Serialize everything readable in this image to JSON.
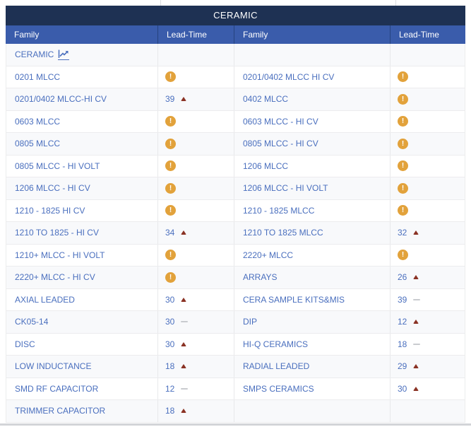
{
  "table": {
    "title": "CERAMIC",
    "columns": [
      "Family",
      "Lead-Time",
      "Family",
      "Lead-Time"
    ],
    "category_row": {
      "label": "CERAMIC",
      "icon": "trend-chart-icon"
    },
    "rows": [
      {
        "family_left": "0201 MLCC",
        "lead_left": {
          "type": "alert"
        },
        "family_right": "0201/0402 MLCC HI CV",
        "lead_right": {
          "type": "alert"
        }
      },
      {
        "family_left": "0201/0402 MLCC-HI CV",
        "lead_left": {
          "type": "value",
          "value": 39,
          "trend": "up"
        },
        "family_right": "0402 MLCC",
        "lead_right": {
          "type": "alert"
        }
      },
      {
        "family_left": "0603 MLCC",
        "lead_left": {
          "type": "alert"
        },
        "family_right": "0603 MLCC - HI CV",
        "lead_right": {
          "type": "alert"
        }
      },
      {
        "family_left": "0805 MLCC",
        "lead_left": {
          "type": "alert"
        },
        "family_right": "0805 MLCC - HI CV",
        "lead_right": {
          "type": "alert"
        }
      },
      {
        "family_left": "0805 MLCC - HI VOLT",
        "lead_left": {
          "type": "alert"
        },
        "family_right": "1206 MLCC",
        "lead_right": {
          "type": "alert"
        }
      },
      {
        "family_left": "1206 MLCC - HI CV",
        "lead_left": {
          "type": "alert"
        },
        "family_right": "1206 MLCC - HI VOLT",
        "lead_right": {
          "type": "alert"
        }
      },
      {
        "family_left": "1210 - 1825 HI CV",
        "lead_left": {
          "type": "alert"
        },
        "family_right": "1210 - 1825 MLCC",
        "lead_right": {
          "type": "alert"
        }
      },
      {
        "family_left": "1210 TO 1825 - HI CV",
        "lead_left": {
          "type": "value",
          "value": 34,
          "trend": "up"
        },
        "family_right": "1210 TO 1825 MLCC",
        "lead_right": {
          "type": "value",
          "value": 32,
          "trend": "up"
        }
      },
      {
        "family_left": "1210+ MLCC - HI VOLT",
        "lead_left": {
          "type": "alert"
        },
        "family_right": "2220+ MLCC",
        "lead_right": {
          "type": "alert"
        }
      },
      {
        "family_left": "2220+ MLCC - HI CV",
        "lead_left": {
          "type": "alert"
        },
        "family_right": "ARRAYS",
        "lead_right": {
          "type": "value",
          "value": 26,
          "trend": "up"
        }
      },
      {
        "family_left": "AXIAL LEADED",
        "lead_left": {
          "type": "value",
          "value": 30,
          "trend": "up"
        },
        "family_right": "CERA SAMPLE KITS&MIS",
        "lead_right": {
          "type": "value",
          "value": 39,
          "trend": "flat"
        }
      },
      {
        "family_left": "CK05-14",
        "lead_left": {
          "type": "value",
          "value": 30,
          "trend": "flat"
        },
        "family_right": "DIP",
        "lead_right": {
          "type": "value",
          "value": 12,
          "trend": "up"
        }
      },
      {
        "family_left": "DISC",
        "lead_left": {
          "type": "value",
          "value": 30,
          "trend": "up"
        },
        "family_right": "HI-Q CERAMICS",
        "lead_right": {
          "type": "value",
          "value": 18,
          "trend": "flat"
        }
      },
      {
        "family_left": "LOW INDUCTANCE",
        "lead_left": {
          "type": "value",
          "value": 18,
          "trend": "up"
        },
        "family_right": "RADIAL LEADED",
        "lead_right": {
          "type": "value",
          "value": 29,
          "trend": "up"
        }
      },
      {
        "family_left": "SMD RF CAPACITOR",
        "lead_left": {
          "type": "value",
          "value": 12,
          "trend": "flat"
        },
        "family_right": "SMPS CERAMICS",
        "lead_right": {
          "type": "value",
          "value": 30,
          "trend": "up"
        }
      },
      {
        "family_left": "TRIMMER CAPACITOR",
        "lead_left": {
          "type": "value",
          "value": 18,
          "trend": "up"
        },
        "family_right": "",
        "lead_right": {
          "type": "none"
        }
      }
    ],
    "colors": {
      "title_bg": "#1e3153",
      "header_bg": "#3a5cab",
      "link": "#4a6fbe",
      "alert": "#e2a23b",
      "trend_up": "#8a3224",
      "trend_flat": "#c9cbcf"
    }
  }
}
